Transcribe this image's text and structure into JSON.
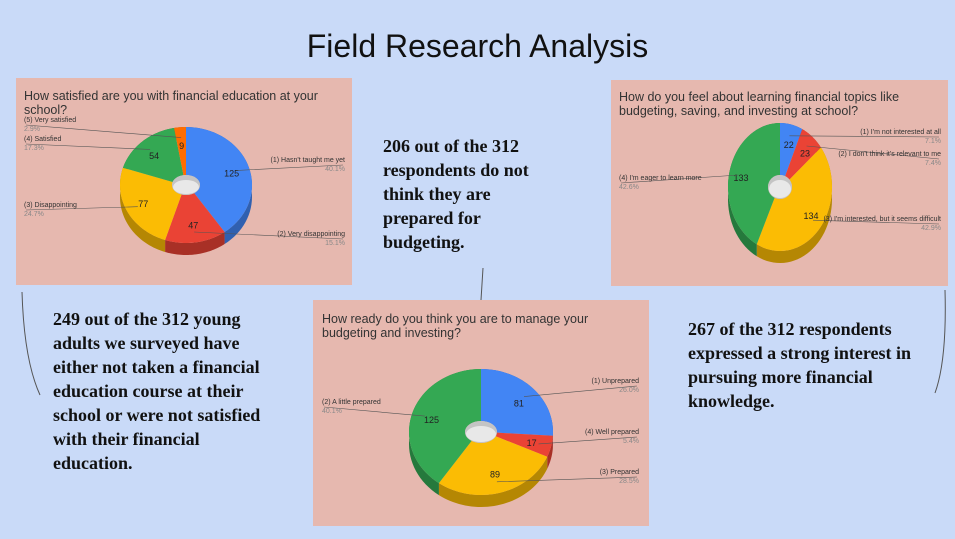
{
  "title": "Field Research Analysis",
  "notes": {
    "left": "249 out of the 312 young adults we surveyed have either not taken a financial education course at their school or were not satisfied with their financial education.",
    "middle": "206 out of the 312 respondents do not think they are prepared for budgeting.",
    "right": "267 of the 312 respondents expressed a strong interest in pursuing more financial knowledge."
  },
  "colors": {
    "background": "#c9daf8",
    "panel": "#e6b8af"
  },
  "chart_data": [
    {
      "type": "pie",
      "title": "How satisfied are you with financial education at your school?",
      "slices": [
        {
          "label": "(1) Hasn't taught me yet",
          "value": 125,
          "percent": "40.1%",
          "color": "#4285f4"
        },
        {
          "label": "(2) Very disappointing",
          "value": 47,
          "percent": "15.1%",
          "color": "#ea4335"
        },
        {
          "label": "(3) Disappointing",
          "value": 77,
          "percent": "24.7%",
          "color": "#fbbc04"
        },
        {
          "label": "(4) Satisfied",
          "value": 54,
          "percent": "17.3%",
          "color": "#34a853"
        },
        {
          "label": "(5) Very satisfied",
          "value": 9,
          "percent": "2.9%",
          "color": "#ff6d01"
        }
      ]
    },
    {
      "type": "pie",
      "title": "How ready do you think you are to manage your budgeting and investing?",
      "slices": [
        {
          "label": "(1) Unprepared",
          "value": 81,
          "percent": "26.0%",
          "color": "#4285f4"
        },
        {
          "label": "(4) Well prepared",
          "value": 17,
          "percent": "5.4%",
          "color": "#ea4335"
        },
        {
          "label": "(3) Prepared",
          "value": 89,
          "percent": "28.5%",
          "color": "#fbbc04"
        },
        {
          "label": "(2) A little prepared",
          "value": 125,
          "percent": "40.1%",
          "color": "#34a853"
        }
      ]
    },
    {
      "type": "pie",
      "title": "How do you feel about learning financial topics like budgeting, saving, and investing at school?",
      "slices": [
        {
          "label": "(1) I'm not interested at all",
          "value": 22,
          "percent": "7.1%",
          "color": "#4285f4"
        },
        {
          "label": "(2) I don't think it's relevant to me",
          "value": 23,
          "percent": "7.4%",
          "color": "#ea4335"
        },
        {
          "label": "(3) I'm interested, but it seems difficult",
          "value": 134,
          "percent": "42.9%",
          "color": "#fbbc04"
        },
        {
          "label": "(4) I'm eager to learn more",
          "value": 133,
          "percent": "42.6%",
          "color": "#34a853"
        }
      ]
    }
  ]
}
